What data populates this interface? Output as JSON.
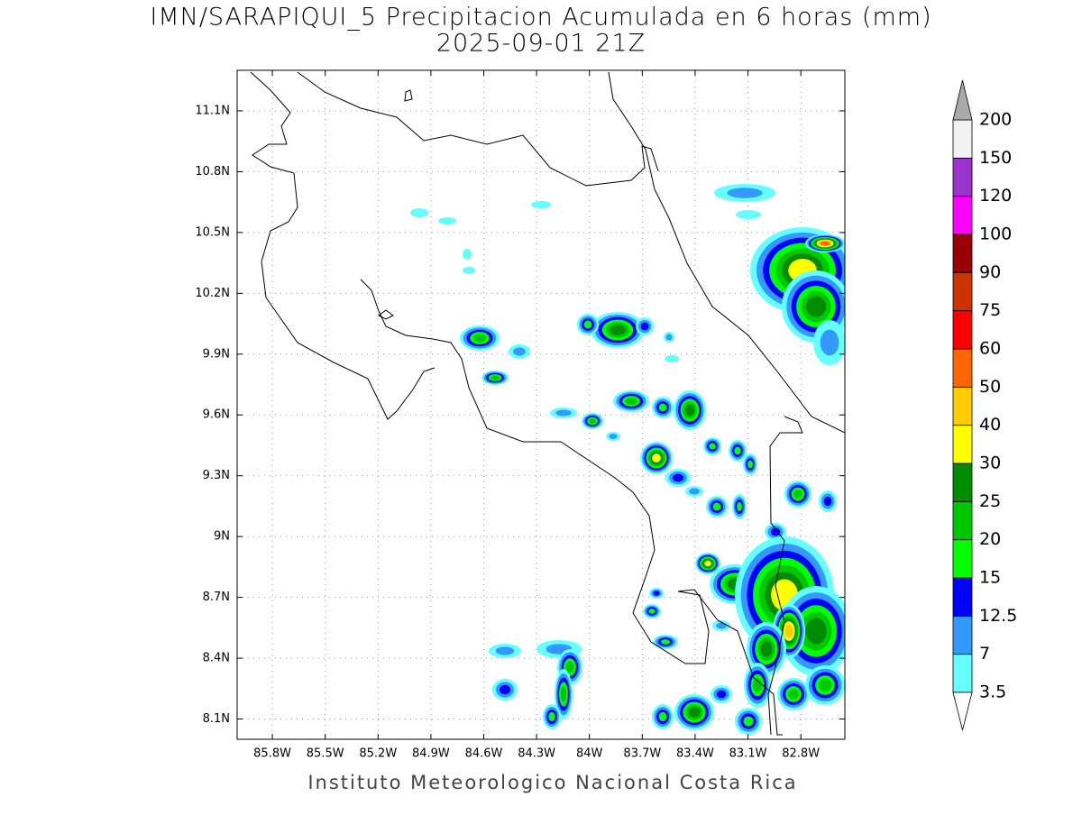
{
  "title": "IMN/SARAPIQUI_5 Precipitacion Acumulada en 6 horas (mm)",
  "subtitle": "2025-09-01 21Z",
  "footer": "Instituto Meteorologico Nacional Costa Rica",
  "map": {
    "lon_range": [
      -86,
      -82.55
    ],
    "lat_range": [
      8,
      11.3
    ],
    "lon_ticks": [
      {
        "value": -85.8,
        "label": "85.8W"
      },
      {
        "value": -85.5,
        "label": "85.5W"
      },
      {
        "value": -85.2,
        "label": "85.2W"
      },
      {
        "value": -84.9,
        "label": "84.9W"
      },
      {
        "value": -84.6,
        "label": "84.6W"
      },
      {
        "value": -84.3,
        "label": "84.3W"
      },
      {
        "value": -84,
        "label": "84W"
      },
      {
        "value": -83.7,
        "label": "83.7W"
      },
      {
        "value": -83.4,
        "label": "83.4W"
      },
      {
        "value": -83.1,
        "label": "83.1W"
      },
      {
        "value": -82.8,
        "label": "82.8W"
      }
    ],
    "lat_ticks": [
      {
        "value": 11.1,
        "label": "11.1N"
      },
      {
        "value": 10.8,
        "label": "10.8N"
      },
      {
        "value": 10.5,
        "label": "10.5N"
      },
      {
        "value": 10.2,
        "label": "10.2N"
      },
      {
        "value": 9.9,
        "label": "9.9N"
      },
      {
        "value": 9.6,
        "label": "9.6N"
      },
      {
        "value": 9.3,
        "label": "9.3N"
      },
      {
        "value": 9,
        "label": "9N"
      },
      {
        "value": 8.7,
        "label": "8.7N"
      },
      {
        "value": 8.4,
        "label": "8.4N"
      },
      {
        "value": 8.1,
        "label": "8.1N"
      }
    ],
    "grid": true
  },
  "colorbar": {
    "levels": [
      3.5,
      7,
      12.5,
      15,
      20,
      25,
      30,
      40,
      50,
      60,
      75,
      90,
      100,
      120,
      150,
      200
    ],
    "colors": [
      "#66ffff",
      "#3399ff",
      "#0000ff",
      "#00ff00",
      "#00c800",
      "#008c00",
      "#ffff00",
      "#ffcc00",
      "#ff6600",
      "#ff0000",
      "#cc3300",
      "#990000",
      "#ff00ff",
      "#9933cc",
      "#f2f2f2"
    ],
    "under_color": "#ffffff",
    "over_color": "#aaaaaa"
  }
}
